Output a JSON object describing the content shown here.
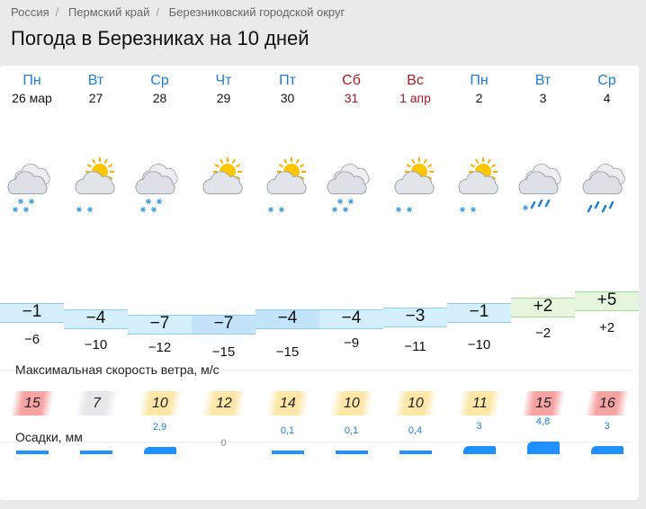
{
  "breadcrumb": [
    "Россия",
    "Пермский край",
    "Березниковский городской округ"
  ],
  "title": "Погода в Березниках на 10 дней",
  "days": [
    {
      "dow": "Пн",
      "date": "26 мар",
      "weekend": false,
      "icon": "cloudy-snow",
      "tmax": "−1",
      "tmin": "−6",
      "max": -1,
      "min": -6,
      "wind": "15",
      "wind_level": "red",
      "precip": "",
      "precip_mm": 1.5
    },
    {
      "dow": "Вт",
      "date": "27",
      "weekend": false,
      "icon": "partly-cloudy-snow",
      "tmax": "−4",
      "tmin": "−10",
      "max": -4,
      "min": -10,
      "wind": "7",
      "wind_level": "gray",
      "precip": "",
      "precip_mm": 1.5
    },
    {
      "dow": "Ср",
      "date": "28",
      "weekend": false,
      "icon": "cloudy-snow",
      "tmax": "−7",
      "tmin": "−12",
      "max": -7,
      "min": -12,
      "wind": "10",
      "wind_level": "yellow",
      "precip": "2,9",
      "precip_mm": 2.9
    },
    {
      "dow": "Чт",
      "date": "29",
      "weekend": false,
      "icon": "partly-cloudy",
      "tmax": "−7",
      "tmin": "−15",
      "max": -7,
      "min": -15,
      "wind": "12",
      "wind_level": "yellow",
      "precip": "0",
      "precip_mm": 0
    },
    {
      "dow": "Пт",
      "date": "30",
      "weekend": false,
      "icon": "partly-cloudy-snow",
      "tmax": "−4",
      "tmin": "−15",
      "max": -4,
      "min": -15,
      "wind": "14",
      "wind_level": "yellow",
      "precip": "0,1",
      "precip_mm": 0.1
    },
    {
      "dow": "Сб",
      "date": "31",
      "weekend": true,
      "icon": "cloudy-snow",
      "tmax": "−4",
      "tmin": "−9",
      "max": -4,
      "min": -9,
      "wind": "10",
      "wind_level": "yellow",
      "precip": "0,1",
      "precip_mm": 0.1
    },
    {
      "dow": "Вс",
      "date": "1 апр",
      "weekend": true,
      "icon": "partly-cloudy-snow",
      "tmax": "−3",
      "tmin": "−11",
      "max": -3,
      "min": -11,
      "wind": "10",
      "wind_level": "yellow",
      "precip": "0,4",
      "precip_mm": 0.4
    },
    {
      "dow": "Пн",
      "date": "2",
      "weekend": false,
      "icon": "partly-cloudy-snow",
      "tmax": "−1",
      "tmin": "−10",
      "max": -1,
      "min": -10,
      "wind": "11",
      "wind_level": "yellow",
      "precip": "3",
      "precip_mm": 3
    },
    {
      "dow": "Вт",
      "date": "3",
      "weekend": false,
      "icon": "cloudy-sleet",
      "tmax": "+2",
      "tmin": "−2",
      "max": 2,
      "min": -2,
      "wind": "15",
      "wind_level": "red",
      "precip": "4,8",
      "precip_mm": 4.8
    },
    {
      "dow": "Ср",
      "date": "4",
      "weekend": false,
      "icon": "cloudy-rain",
      "tmax": "+5",
      "tmin": "+2",
      "max": 5,
      "min": 2,
      "wind": "16",
      "wind_level": "red",
      "precip": "3",
      "precip_mm": 3
    }
  ],
  "wind_label": "Максимальная скорость ветра, м/с",
  "precip_label": "Осадки, мм",
  "colors": {
    "accent": "#1e7fd6",
    "weekend": "#b0191e",
    "red": "#f7a3a3",
    "gray": "#e6e7ea",
    "yellow": "#fde6a6"
  }
}
